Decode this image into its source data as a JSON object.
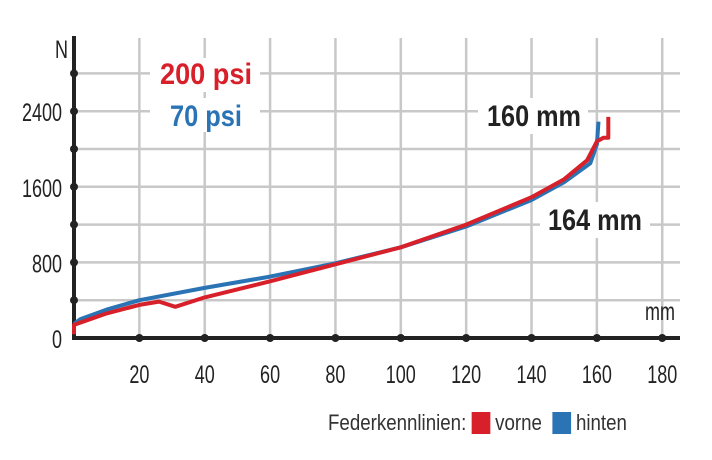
{
  "chart_data": {
    "type": "line",
    "xlabel": "mm",
    "ylabel": "N",
    "xlim": [
      0,
      185
    ],
    "ylim": [
      0,
      2900
    ],
    "x_ticks": [
      20,
      40,
      60,
      80,
      100,
      120,
      140,
      160,
      180
    ],
    "y_ticks": [
      0,
      800,
      1600,
      2400
    ],
    "grid": true,
    "annotations": {
      "pressure_front": "200 psi",
      "pressure_rear": "70 psi",
      "travel_rear": "160 mm",
      "travel_front": "164 mm"
    },
    "legend": {
      "title": "Federkennlinien:",
      "placement": "bottom-right"
    },
    "series": [
      {
        "name": "vorne",
        "color": "#d7202a",
        "x": [
          0,
          0,
          10,
          20,
          26,
          31,
          40,
          60,
          80,
          100,
          120,
          140,
          150,
          157,
          160,
          162,
          163.5,
          163.5
        ],
        "y": [
          40,
          140,
          260,
          350,
          385,
          330,
          430,
          600,
          780,
          960,
          1200,
          1490,
          1680,
          1880,
          2080,
          2120,
          2120,
          2340
        ]
      },
      {
        "name": "hinten",
        "color": "#2a73b5",
        "x": [
          0,
          2,
          10,
          20,
          40,
          60,
          80,
          100,
          120,
          140,
          150,
          158,
          160,
          160.5
        ],
        "y": [
          150,
          200,
          300,
          400,
          530,
          650,
          790,
          960,
          1180,
          1460,
          1650,
          1850,
          2050,
          2290
        ]
      }
    ]
  }
}
